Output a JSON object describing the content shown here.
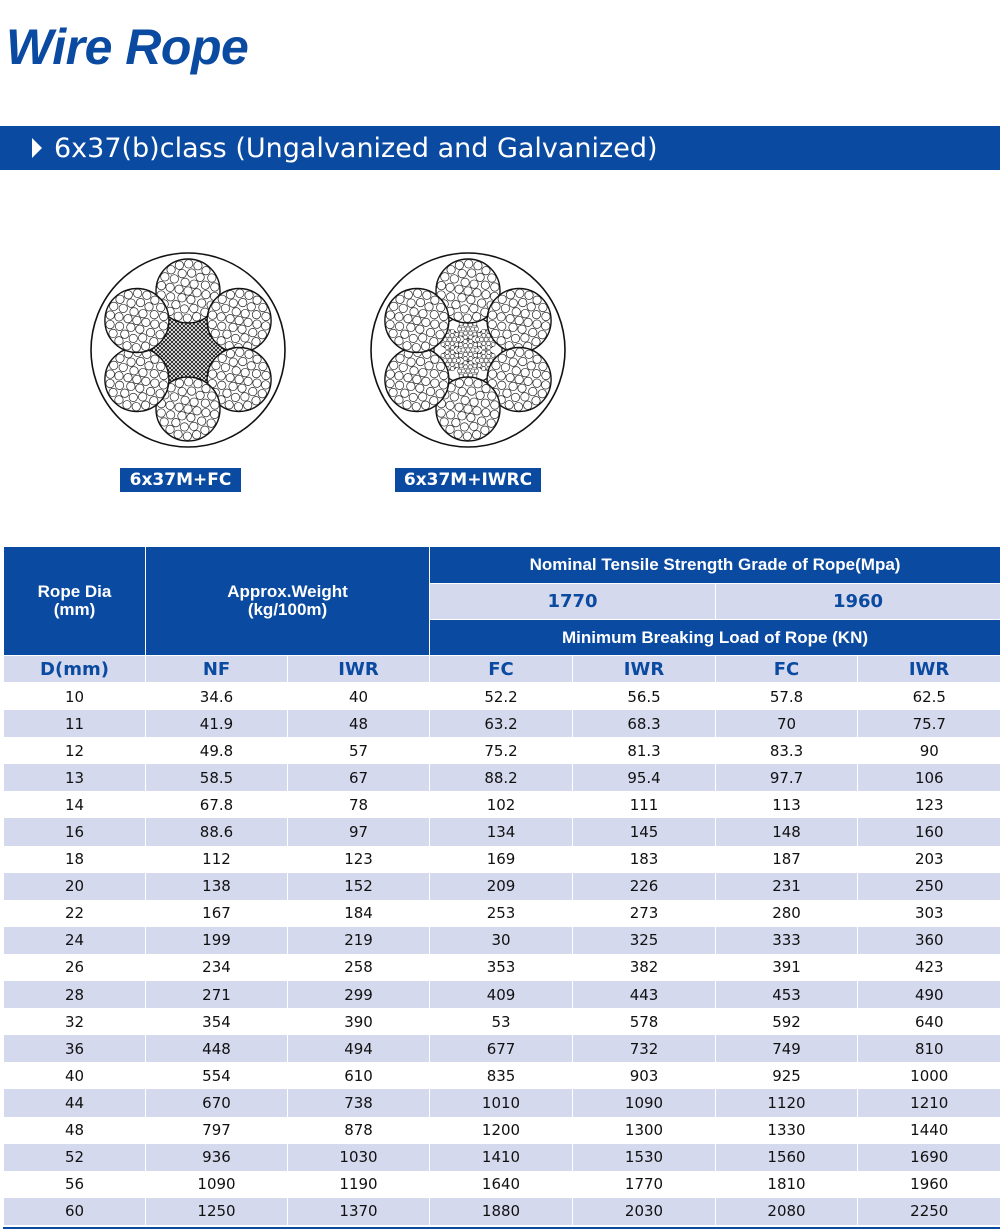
{
  "title": "Wire Rope",
  "section": {
    "label": "6x37(b)class (Ungalvanized and Galvanized)"
  },
  "diagrams": [
    {
      "label": "6x37M+FC",
      "core": "fiber"
    },
    {
      "label": "6x37M+IWRC",
      "core": "iwrc"
    }
  ],
  "table": {
    "header": {
      "rope_dia": "Rope Dia\n(mm)",
      "weight": "Approx.Weight\n(kg/100m)",
      "tensile": "Nominal Tensile Strength Grade of Rope(Mpa)",
      "grade_1": "1770",
      "grade_2": "1960",
      "breaking": "Minimum Breaking Load of Rope (KN)",
      "sub": [
        "D(mm)",
        "NF",
        "IWR",
        "FC",
        "IWR",
        "FC",
        "IWR"
      ]
    },
    "rows": [
      [
        "10",
        "34.6",
        "40",
        "52.2",
        "56.5",
        "57.8",
        "62.5"
      ],
      [
        "11",
        "41.9",
        "48",
        "63.2",
        "68.3",
        "70",
        "75.7"
      ],
      [
        "12",
        "49.8",
        "57",
        "75.2",
        "81.3",
        "83.3",
        "90"
      ],
      [
        "13",
        "58.5",
        "67",
        "88.2",
        "95.4",
        "97.7",
        "106"
      ],
      [
        "14",
        "67.8",
        "78",
        "102",
        "111",
        "113",
        "123"
      ],
      [
        "16",
        "88.6",
        "97",
        "134",
        "145",
        "148",
        "160"
      ],
      [
        "18",
        "112",
        "123",
        "169",
        "183",
        "187",
        "203"
      ],
      [
        "20",
        "138",
        "152",
        "209",
        "226",
        "231",
        "250"
      ],
      [
        "22",
        "167",
        "184",
        "253",
        "273",
        "280",
        "303"
      ],
      [
        "24",
        "199",
        "219",
        "30",
        "325",
        "333",
        "360"
      ],
      [
        "26",
        "234",
        "258",
        "353",
        "382",
        "391",
        "423"
      ],
      [
        "28",
        "271",
        "299",
        "409",
        "443",
        "453",
        "490"
      ],
      [
        "32",
        "354",
        "390",
        "53",
        "578",
        "592",
        "640"
      ],
      [
        "36",
        "448",
        "494",
        "677",
        "732",
        "749",
        "810"
      ],
      [
        "40",
        "554",
        "610",
        "835",
        "903",
        "925",
        "1000"
      ],
      [
        "44",
        "670",
        "738",
        "1010",
        "1090",
        "1120",
        "1210"
      ],
      [
        "48",
        "797",
        "878",
        "1200",
        "1300",
        "1330",
        "1440"
      ],
      [
        "52",
        "936",
        "1030",
        "1410",
        "1530",
        "1560",
        "1690"
      ],
      [
        "56",
        "1090",
        "1190",
        "1640",
        "1770",
        "1810",
        "1960"
      ],
      [
        "60",
        "1250",
        "1370",
        "1880",
        "2030",
        "2080",
        "2250"
      ]
    ]
  },
  "colors": {
    "brand_blue": "#0a4aa0",
    "row_alt": "#d5d9ee"
  }
}
